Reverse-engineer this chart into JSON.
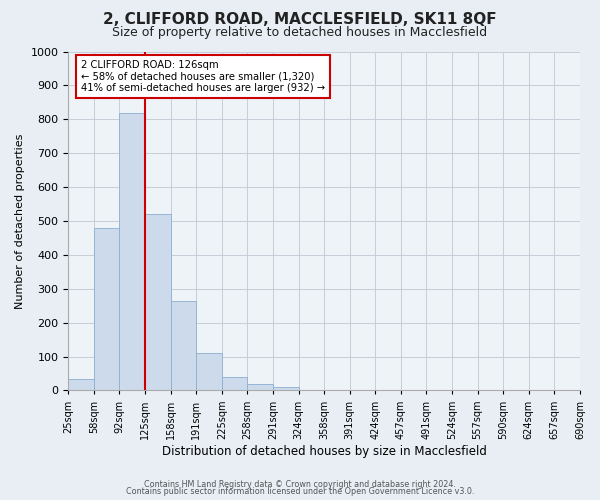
{
  "title1": "2, CLIFFORD ROAD, MACCLESFIELD, SK11 8QF",
  "title2": "Size of property relative to detached houses in Macclesfield",
  "xlabel": "Distribution of detached houses by size in Macclesfield",
  "ylabel": "Number of detached properties",
  "bar_values": [
    35,
    480,
    820,
    520,
    265,
    110,
    40,
    20,
    10,
    0,
    0,
    0,
    0,
    0,
    0,
    0,
    0,
    0,
    0,
    0
  ],
  "bin_labels": [
    "25sqm",
    "58sqm",
    "92sqm",
    "125sqm",
    "158sqm",
    "191sqm",
    "225sqm",
    "258sqm",
    "291sqm",
    "324sqm",
    "358sqm",
    "391sqm",
    "424sqm",
    "457sqm",
    "491sqm",
    "524sqm",
    "557sqm",
    "590sqm",
    "624sqm",
    "657sqm",
    "690sqm"
  ],
  "bar_color": "#ccdaeb",
  "bar_edge_color": "#8bafd1",
  "vline_color": "#cc0000",
  "annotation_box_text": "2 CLIFFORD ROAD: 126sqm\n← 58% of detached houses are smaller (1,320)\n41% of semi-detached houses are larger (932) →",
  "annotation_box_color": "#cc0000",
  "ylim": [
    0,
    1000
  ],
  "yticks": [
    0,
    100,
    200,
    300,
    400,
    500,
    600,
    700,
    800,
    900,
    1000
  ],
  "footer1": "Contains HM Land Registry data © Crown copyright and database right 2024.",
  "footer2": "Contains public sector information licensed under the Open Government Licence v3.0.",
  "bg_color": "#e8eef4",
  "plot_bg_color": "#eef3f8",
  "grid_color": "#c5ced8",
  "title_fontsize": 11,
  "subtitle_fontsize": 9,
  "ylabel_fontsize": 8,
  "xlabel_fontsize": 8.5,
  "tick_fontsize": 8,
  "xtick_fontsize": 7,
  "footer_fontsize": 5.8
}
